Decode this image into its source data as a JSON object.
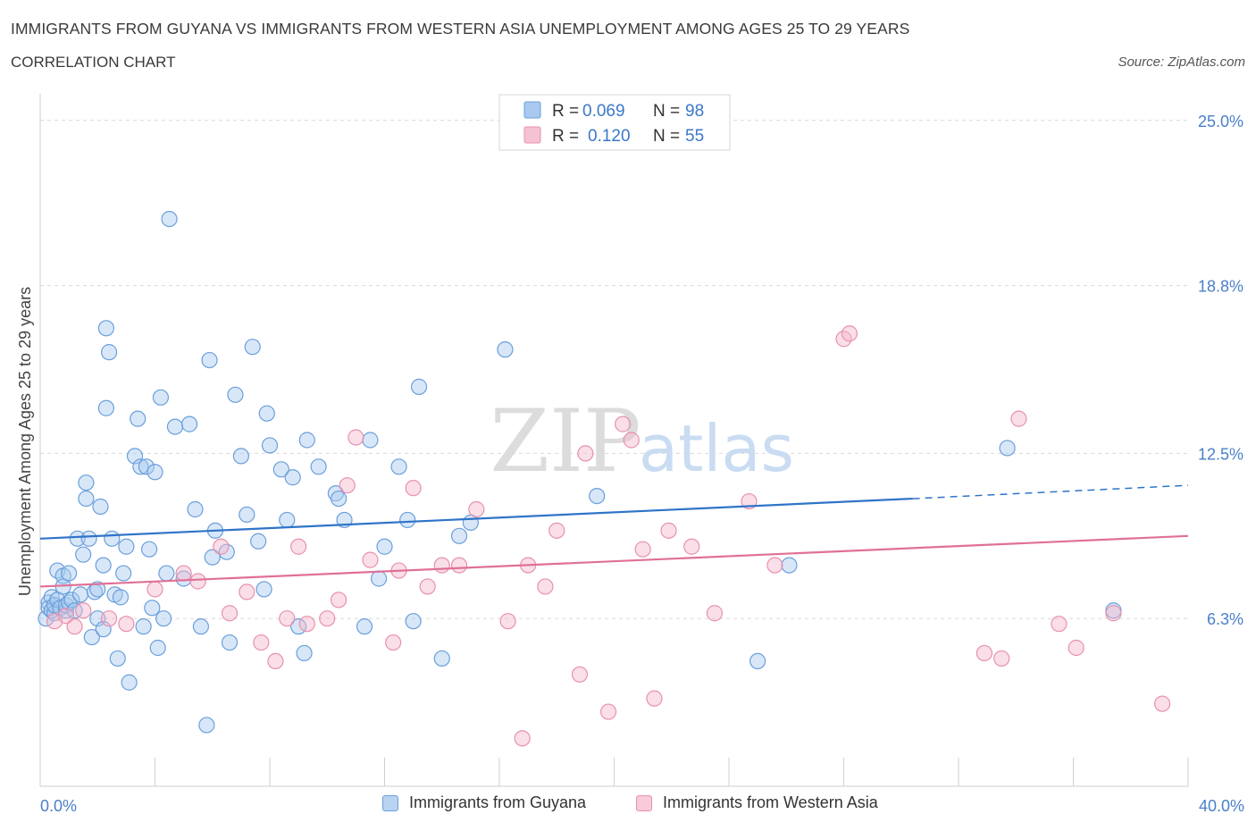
{
  "header": {
    "title": "IMMIGRANTS FROM GUYANA VS IMMIGRANTS FROM WESTERN ASIA UNEMPLOYMENT AMONG AGES 25 TO 29 YEARS",
    "subtitle": "CORRELATION CHART",
    "source": "Source: ZipAtlas.com"
  },
  "watermark": {
    "zip": "ZIP",
    "atlas": "atlas"
  },
  "colors": {
    "blue_fill": "#a9c9f0",
    "blue_stroke": "#6a9fdc",
    "blue_line": "#2f74c8",
    "pink_fill": "#f5b8cc",
    "pink_stroke": "#e891ad",
    "pink_line": "#e07097",
    "axis_label": "#4a7fc8",
    "grid": "#d9d9d9"
  },
  "legend_top": {
    "rows": [
      {
        "r_label": "R =",
        "r_value": "0.069",
        "n_label": "N =",
        "n_value": "98"
      },
      {
        "r_label": "R =",
        "r_value": "0.120",
        "n_label": "N =",
        "n_value": "55"
      }
    ]
  },
  "legend_bottom": {
    "series_a": "Immigrants from Guyana",
    "series_b": "Immigrants from Western Asia"
  },
  "chart_data": {
    "type": "scatter",
    "title": "IMMIGRANTS FROM GUYANA VS IMMIGRANTS FROM WESTERN ASIA UNEMPLOYMENT AMONG AGES 25 TO 29 YEARS",
    "xlabel": "",
    "ylabel": "Unemployment Among Ages 25 to 29 years",
    "xlim": [
      0,
      40
    ],
    "ylim": [
      0,
      26
    ],
    "x_tick_labels": [
      "0.0%",
      "40.0%"
    ],
    "y_ticks": [
      6.3,
      12.5,
      18.8,
      25.0
    ],
    "y_tick_labels": [
      "6.3%",
      "12.5%",
      "18.8%",
      "25.0%"
    ],
    "series": [
      {
        "name": "Immigrants from Guyana",
        "R": 0.069,
        "N": 98,
        "trend": {
          "x0": 0,
          "y0": 9.3,
          "x1": 30.4,
          "y1": 10.8,
          "dash_to_x": 40,
          "dash_to_y": 11.3
        },
        "points": [
          [
            0.2,
            6.3
          ],
          [
            0.3,
            6.9
          ],
          [
            0.3,
            6.7
          ],
          [
            0.4,
            7.1
          ],
          [
            0.4,
            6.6
          ],
          [
            0.5,
            6.5
          ],
          [
            0.5,
            6.8
          ],
          [
            0.6,
            8.1
          ],
          [
            0.6,
            7.0
          ],
          [
            0.7,
            6.7
          ],
          [
            0.8,
            7.9
          ],
          [
            0.8,
            7.5
          ],
          [
            0.9,
            6.6
          ],
          [
            0.9,
            6.8
          ],
          [
            1.0,
            8.0
          ],
          [
            1.0,
            6.9
          ],
          [
            1.1,
            7.0
          ],
          [
            1.2,
            6.6
          ],
          [
            1.3,
            9.3
          ],
          [
            1.4,
            7.2
          ],
          [
            1.5,
            8.7
          ],
          [
            1.6,
            10.8
          ],
          [
            1.6,
            11.4
          ],
          [
            1.7,
            9.3
          ],
          [
            1.8,
            5.6
          ],
          [
            1.9,
            7.3
          ],
          [
            2.0,
            7.4
          ],
          [
            2.0,
            6.3
          ],
          [
            2.1,
            10.5
          ],
          [
            2.2,
            8.3
          ],
          [
            2.2,
            5.9
          ],
          [
            2.3,
            17.2
          ],
          [
            2.3,
            14.2
          ],
          [
            2.4,
            16.3
          ],
          [
            2.5,
            9.3
          ],
          [
            2.6,
            7.2
          ],
          [
            2.7,
            4.8
          ],
          [
            2.8,
            7.1
          ],
          [
            2.9,
            8.0
          ],
          [
            3.0,
            9.0
          ],
          [
            3.1,
            3.9
          ],
          [
            3.3,
            12.4
          ],
          [
            3.4,
            13.8
          ],
          [
            3.5,
            12.0
          ],
          [
            3.6,
            6.0
          ],
          [
            3.7,
            12.0
          ],
          [
            3.8,
            8.9
          ],
          [
            3.9,
            6.7
          ],
          [
            4.0,
            11.8
          ],
          [
            4.1,
            5.2
          ],
          [
            4.2,
            14.6
          ],
          [
            4.3,
            6.3
          ],
          [
            4.4,
            8.0
          ],
          [
            4.5,
            21.3
          ],
          [
            4.7,
            13.5
          ],
          [
            5.0,
            7.8
          ],
          [
            5.2,
            13.6
          ],
          [
            5.4,
            10.4
          ],
          [
            5.6,
            6.0
          ],
          [
            5.8,
            2.3
          ],
          [
            5.9,
            16.0
          ],
          [
            6.0,
            8.6
          ],
          [
            6.1,
            9.6
          ],
          [
            6.5,
            8.8
          ],
          [
            6.6,
            5.4
          ],
          [
            6.8,
            14.7
          ],
          [
            7.0,
            12.4
          ],
          [
            7.2,
            10.2
          ],
          [
            7.4,
            16.5
          ],
          [
            7.6,
            9.2
          ],
          [
            7.8,
            7.4
          ],
          [
            7.9,
            14.0
          ],
          [
            8.0,
            12.8
          ],
          [
            8.4,
            11.9
          ],
          [
            8.6,
            10.0
          ],
          [
            8.8,
            11.6
          ],
          [
            9.0,
            6.0
          ],
          [
            9.2,
            5.0
          ],
          [
            9.3,
            13.0
          ],
          [
            9.7,
            12.0
          ],
          [
            10.3,
            11.0
          ],
          [
            10.4,
            10.8
          ],
          [
            10.6,
            10.0
          ],
          [
            11.3,
            6.0
          ],
          [
            11.5,
            13.0
          ],
          [
            11.8,
            7.8
          ],
          [
            12.0,
            9.0
          ],
          [
            12.5,
            12.0
          ],
          [
            12.8,
            10.0
          ],
          [
            13.0,
            6.2
          ],
          [
            13.2,
            15.0
          ],
          [
            14.0,
            4.8
          ],
          [
            14.6,
            9.4
          ],
          [
            15.0,
            9.9
          ],
          [
            16.2,
            16.4
          ],
          [
            19.4,
            10.9
          ],
          [
            25.0,
            4.7
          ],
          [
            26.1,
            8.3
          ],
          [
            33.7,
            12.7
          ],
          [
            37.4,
            6.6
          ]
        ]
      },
      {
        "name": "Immigrants from Western Asia",
        "R": 0.12,
        "N": 55,
        "trend": {
          "x0": 0,
          "y0": 7.5,
          "x1": 40,
          "y1": 9.4
        },
        "points": [
          [
            0.5,
            6.2
          ],
          [
            0.9,
            6.4
          ],
          [
            1.5,
            6.6
          ],
          [
            2.4,
            6.3
          ],
          [
            3.0,
            6.1
          ],
          [
            4.0,
            7.4
          ],
          [
            5.0,
            8.0
          ],
          [
            5.5,
            7.7
          ],
          [
            6.3,
            9.0
          ],
          [
            6.6,
            6.5
          ],
          [
            7.2,
            7.3
          ],
          [
            7.7,
            5.4
          ],
          [
            8.2,
            4.7
          ],
          [
            8.6,
            6.3
          ],
          [
            9.0,
            9.0
          ],
          [
            9.3,
            6.1
          ],
          [
            10.0,
            6.3
          ],
          [
            10.4,
            7.0
          ],
          [
            10.7,
            11.3
          ],
          [
            11.0,
            13.1
          ],
          [
            11.5,
            8.5
          ],
          [
            12.3,
            5.4
          ],
          [
            12.5,
            8.1
          ],
          [
            13.0,
            11.2
          ],
          [
            13.5,
            7.5
          ],
          [
            14.0,
            8.3
          ],
          [
            14.6,
            8.3
          ],
          [
            15.2,
            10.4
          ],
          [
            16.3,
            6.2
          ],
          [
            16.8,
            1.8
          ],
          [
            17.0,
            8.3
          ],
          [
            17.6,
            7.5
          ],
          [
            18.0,
            9.6
          ],
          [
            18.8,
            4.2
          ],
          [
            19.0,
            12.5
          ],
          [
            19.8,
            2.8
          ],
          [
            20.3,
            13.6
          ],
          [
            20.6,
            13.0
          ],
          [
            21.0,
            8.9
          ],
          [
            21.4,
            3.3
          ],
          [
            21.9,
            9.6
          ],
          [
            22.7,
            9.0
          ],
          [
            23.5,
            6.5
          ],
          [
            24.7,
            10.7
          ],
          [
            25.6,
            8.3
          ],
          [
            28.0,
            16.8
          ],
          [
            28.2,
            17.0
          ],
          [
            32.9,
            5.0
          ],
          [
            33.5,
            4.8
          ],
          [
            34.1,
            13.8
          ],
          [
            35.5,
            6.1
          ],
          [
            36.1,
            5.2
          ],
          [
            37.4,
            6.5
          ],
          [
            39.1,
            3.1
          ],
          [
            1.2,
            6.0
          ]
        ]
      }
    ]
  }
}
